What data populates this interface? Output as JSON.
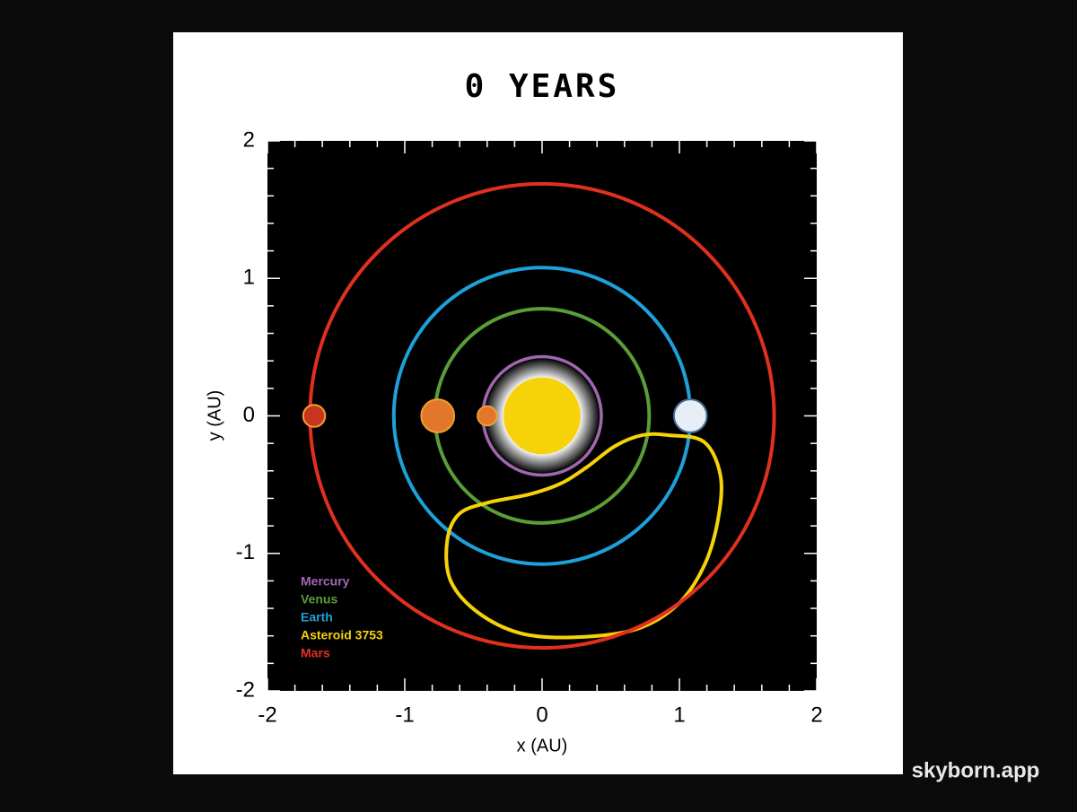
{
  "chart_data": {
    "type": "orbit",
    "title": "0 YEARS",
    "xlabel": "x (AU)",
    "ylabel": "y (AU)",
    "xlim": [
      -2,
      2
    ],
    "ylim": [
      -2,
      2
    ],
    "xticks": [
      -2,
      -1,
      0,
      1,
      2
    ],
    "yticks": [
      -2,
      -1,
      0,
      1,
      2
    ],
    "minor_ticks": [
      -1.8,
      -1.6,
      -1.4,
      -1.2,
      -0.8,
      -0.6,
      -0.4,
      -0.2,
      0.2,
      0.4,
      0.6,
      0.8,
      1.2,
      1.4,
      1.6,
      1.8
    ],
    "sun_radius": 0.28,
    "series": [
      {
        "name": "Mercury",
        "color": "#a066b0",
        "orbit_radius": 0.43,
        "x": -0.4,
        "size": 0.07
      },
      {
        "name": "Venus",
        "color": "#5a9e38",
        "orbit_radius": 0.78,
        "x": -0.76,
        "size": 0.12
      },
      {
        "name": "Earth",
        "color": "#1ea0d8",
        "orbit_radius": 1.08,
        "x": 1.08,
        "size": 0.12
      },
      {
        "name": "Asteroid 3753",
        "color": "#f5d20a",
        "path_x": [
          0.92,
          1.18,
          1.3,
          1.28,
          1.18,
          0.99,
          0.69,
          0.24,
          -0.16,
          -0.48,
          -0.67,
          -0.69,
          -0.6,
          -0.39,
          -0.09,
          0.14,
          0.33,
          0.53,
          0.73
        ],
        "path_y": [
          -0.14,
          -0.19,
          -0.44,
          -0.76,
          -1.09,
          -1.37,
          -1.55,
          -1.61,
          -1.58,
          -1.42,
          -1.19,
          -0.9,
          -0.71,
          -0.63,
          -0.57,
          -0.49,
          -0.37,
          -0.22,
          -0.14
        ]
      },
      {
        "name": "Mars",
        "color": "#e0301e",
        "orbit_radius": 1.69,
        "x": -1.66,
        "size": 0.08
      }
    ]
  },
  "watermark": "skyborn.app"
}
